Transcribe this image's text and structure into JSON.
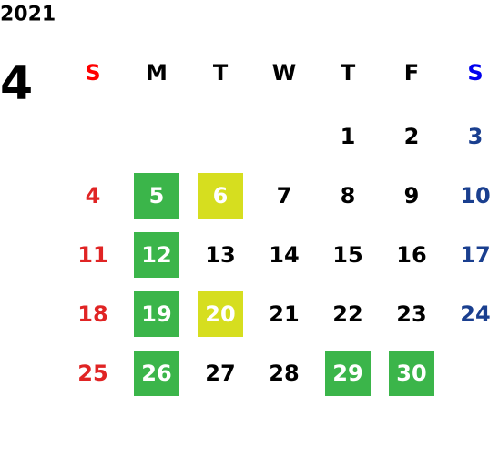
{
  "year": "2021",
  "month": "4",
  "weekdays": [
    {
      "label": "S",
      "color": "#ff0000",
      "day_color": "#e02424"
    },
    {
      "label": "M",
      "color": "#000000",
      "day_color": "#000000"
    },
    {
      "label": "T",
      "color": "#000000",
      "day_color": "#000000"
    },
    {
      "label": "W",
      "color": "#000000",
      "day_color": "#000000"
    },
    {
      "label": "T",
      "color": "#000000",
      "day_color": "#000000"
    },
    {
      "label": "F",
      "color": "#000000",
      "day_color": "#000000"
    },
    {
      "label": "S",
      "color": "#0000ee",
      "day_color": "#1a3f8f"
    }
  ],
  "weeks": [
    [
      null,
      null,
      null,
      null,
      1,
      2,
      3
    ],
    [
      4,
      {
        "day": 5,
        "fill": "#3bb54a"
      },
      {
        "day": 6,
        "fill": "#d6de1f"
      },
      7,
      8,
      9,
      10
    ],
    [
      11,
      {
        "day": 12,
        "fill": "#3bb54a"
      },
      13,
      14,
      15,
      16,
      17
    ],
    [
      18,
      {
        "day": 19,
        "fill": "#3bb54a"
      },
      {
        "day": 20,
        "fill": "#d6de1f"
      },
      21,
      22,
      23,
      24
    ],
    [
      25,
      {
        "day": 26,
        "fill": "#3bb54a"
      },
      27,
      28,
      {
        "day": 29,
        "fill": "#3bb54a"
      },
      {
        "day": 30,
        "fill": "#3bb54a"
      },
      null
    ]
  ]
}
